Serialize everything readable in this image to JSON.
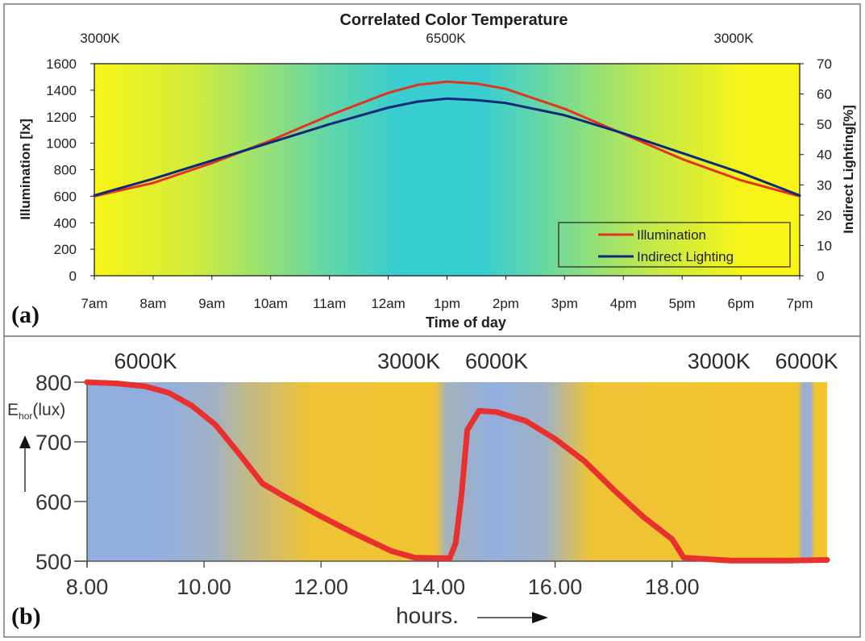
{
  "panel_labels": {
    "a": "(a)",
    "b": "(b)"
  },
  "chart_data": [
    {
      "id": "a",
      "type": "line",
      "title": "Correlated Color Temperature",
      "top_labels": {
        "left": "3000K",
        "center": "6500K",
        "right": "3000K"
      },
      "xlabel": "Time of day",
      "ylabel": "Illumination [lx]",
      "ylabel_right": "Indirect Lighting[%]",
      "categories": [
        "7am",
        "8am",
        "9am",
        "10am",
        "11am",
        "12am",
        "1pm",
        "2pm",
        "3pm",
        "4pm",
        "5pm",
        "6pm",
        "7pm"
      ],
      "x": [
        7,
        8,
        9,
        10,
        11,
        12,
        13,
        14,
        15,
        16,
        17,
        18,
        19
      ],
      "ylim": [
        0,
        1600
      ],
      "yticks": [
        "0",
        "200",
        "400",
        "600",
        "800",
        "1000",
        "1200",
        "1400",
        "1600"
      ],
      "ylim_right": [
        0,
        70
      ],
      "yticks_right": [
        "0",
        "10",
        "20",
        "30",
        "40",
        "50",
        "60",
        "70"
      ],
      "grid": false,
      "legend_position": "bottom-right",
      "background_colors": {
        "warm": "#f8f417",
        "cool": "#38cdd0"
      },
      "series": [
        {
          "name": "Illumination",
          "axis": "left",
          "color": "#e53321",
          "x": [
            7,
            8,
            9,
            10,
            11,
            12,
            12.5,
            13,
            13.5,
            14,
            15,
            16,
            17,
            18,
            19
          ],
          "values": [
            600,
            700,
            850,
            1020,
            1210,
            1380,
            1440,
            1465,
            1450,
            1410,
            1260,
            1070,
            880,
            720,
            600
          ]
        },
        {
          "name": "Indirect Lighting",
          "axis": "right",
          "color": "#0d2a7a",
          "x": [
            7,
            8,
            9,
            10,
            11,
            12,
            12.5,
            13,
            13.5,
            14,
            15,
            16,
            17,
            18,
            19
          ],
          "values": [
            26.5,
            32,
            38,
            44,
            50,
            55.5,
            57.5,
            58.5,
            58,
            57,
            53,
            47,
            40.5,
            34,
            26.5
          ]
        }
      ]
    },
    {
      "id": "b",
      "type": "line",
      "xlabel": "hours.",
      "ylabel": "E",
      "ylabel_sub": "hor",
      "ylabel_unit": "(lux)",
      "top_labels": [
        {
          "text": "6000K",
          "x": 9.0
        },
        {
          "text": "3000K",
          "x": 13.5
        },
        {
          "text": "6000K",
          "x": 15.0
        },
        {
          "text": "3000K",
          "x": 18.8
        },
        {
          "text": "6000K",
          "x": 20.3
        }
      ],
      "xticks": [
        "8.00",
        "10.00",
        "12.00",
        "14.00",
        "16.00",
        "18.00"
      ],
      "xtick_values": [
        8,
        10,
        12,
        14,
        16,
        18
      ],
      "xlim": [
        8,
        20.65
      ],
      "ylim": [
        500,
        800
      ],
      "yticks": [
        "500",
        "600",
        "700",
        "800"
      ],
      "ytick_values": [
        500,
        600,
        700,
        800
      ],
      "grid": false,
      "background_colors": {
        "cool": "#92aedf",
        "warm": "#f3c42d"
      },
      "series": [
        {
          "color": "#e8302e",
          "x": [
            8,
            8.5,
            9.0,
            9.4,
            9.8,
            10.2,
            10.6,
            11.0,
            11.4,
            12.0,
            12.6,
            13.2,
            13.6,
            14.0,
            14.2,
            14.3,
            14.4,
            14.5,
            14.7,
            15.0,
            15.5,
            16.0,
            16.5,
            17.0,
            17.5,
            18.0,
            18.2,
            19.0,
            20.0,
            20.65
          ],
          "values": [
            800,
            798,
            793,
            782,
            760,
            728,
            680,
            630,
            607,
            575,
            545,
            517,
            506,
            505,
            505,
            530,
            610,
            720,
            752,
            750,
            735,
            705,
            668,
            620,
            575,
            537,
            506,
            501,
            501,
            502
          ]
        }
      ]
    }
  ]
}
